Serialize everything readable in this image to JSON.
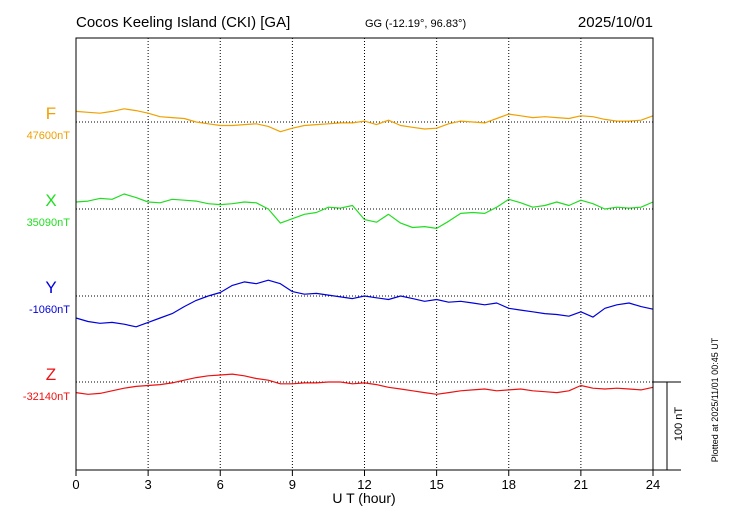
{
  "header": {
    "station": "Cocos Keeling Island (CKI)  [GA]",
    "coords": "GG (-12.19°,  96.83°)",
    "date": "2025/10/01"
  },
  "footer": {
    "xlabel": "U T (hour)",
    "plotted": "Plotted at 2025/11/01 00:45 UT",
    "scale_label": "100 nT"
  },
  "chart_data": {
    "type": "line",
    "xlabel": "U T (hour)",
    "xlim": [
      0,
      24
    ],
    "x_ticks": [
      "0",
      "3",
      "6",
      "9",
      "12",
      "15",
      "18",
      "21",
      "24"
    ],
    "grid": true,
    "scale_bar_nT": 100,
    "x": [
      0,
      0.5,
      1,
      1.5,
      2,
      2.5,
      3,
      3.5,
      4,
      4.5,
      5,
      5.5,
      6,
      6.5,
      7,
      7.5,
      8,
      8.5,
      9,
      9.5,
      10,
      10.5,
      11,
      11.5,
      12,
      12.5,
      13,
      13.5,
      14,
      14.5,
      15,
      15.5,
      16,
      16.5,
      17,
      17.5,
      18,
      18.5,
      19,
      19.5,
      20,
      20.5,
      21,
      21.5,
      22,
      22.5,
      23,
      23.5,
      24
    ],
    "series": [
      {
        "name": "F",
        "baseline": "47600nT",
        "color": "#f0a000",
        "values": [
          12,
          11,
          10,
          12,
          15,
          13,
          10,
          6,
          5,
          4,
          0,
          -2,
          -4,
          -4,
          -3,
          -2,
          -5,
          -11,
          -7,
          -4,
          -3,
          -2,
          -1,
          -1,
          1,
          -3,
          2,
          -4,
          -6,
          -8,
          -7,
          -2,
          1,
          0,
          -1,
          4,
          9,
          7,
          5,
          6,
          5,
          4,
          7,
          6,
          3,
          1,
          1,
          2,
          7
        ]
      },
      {
        "name": "X",
        "baseline": "35090nT",
        "color": "#22dd22",
        "values": [
          8,
          9,
          12,
          11,
          17,
          13,
          8,
          7,
          11,
          10,
          9,
          6,
          5,
          6,
          8,
          7,
          0,
          -16,
          -11,
          -6,
          -4,
          2,
          1,
          4,
          -12,
          -15,
          -6,
          -16,
          -21,
          -20,
          -22,
          -14,
          -5,
          -4,
          -5,
          2,
          11,
          7,
          2,
          4,
          8,
          4,
          10,
          6,
          0,
          2,
          1,
          2,
          8
        ]
      },
      {
        "name": "Y",
        "baseline": "-1060nT",
        "color": "#0000dd",
        "values": [
          -25,
          -29,
          -31,
          -30,
          -32,
          -35,
          -30,
          -25,
          -20,
          -12,
          -5,
          0,
          4,
          12,
          16,
          14,
          18,
          14,
          5,
          2,
          3,
          1,
          -1,
          -3,
          0,
          -2,
          -4,
          0,
          -3,
          -6,
          -4,
          -7,
          -6,
          -8,
          -10,
          -8,
          -14,
          -16,
          -18,
          -20,
          -21,
          -23,
          -18,
          -24,
          -14,
          -10,
          -8,
          -12,
          -15
        ]
      },
      {
        "name": "Z",
        "baseline": "-32140nT",
        "color": "#ee1111",
        "values": [
          -12,
          -14,
          -13,
          -10,
          -7,
          -5,
          -4,
          -3,
          -1,
          2,
          5,
          7,
          8,
          9,
          7,
          4,
          2,
          -2,
          -2,
          -1,
          -1,
          0,
          0,
          -2,
          -1,
          -3,
          -6,
          -8,
          -10,
          -12,
          -14,
          -12,
          -10,
          -9,
          -8,
          -10,
          -9,
          -8,
          -10,
          -11,
          -12,
          -10,
          -4,
          -7,
          -8,
          -7,
          -8,
          -9,
          -6
        ]
      }
    ]
  }
}
